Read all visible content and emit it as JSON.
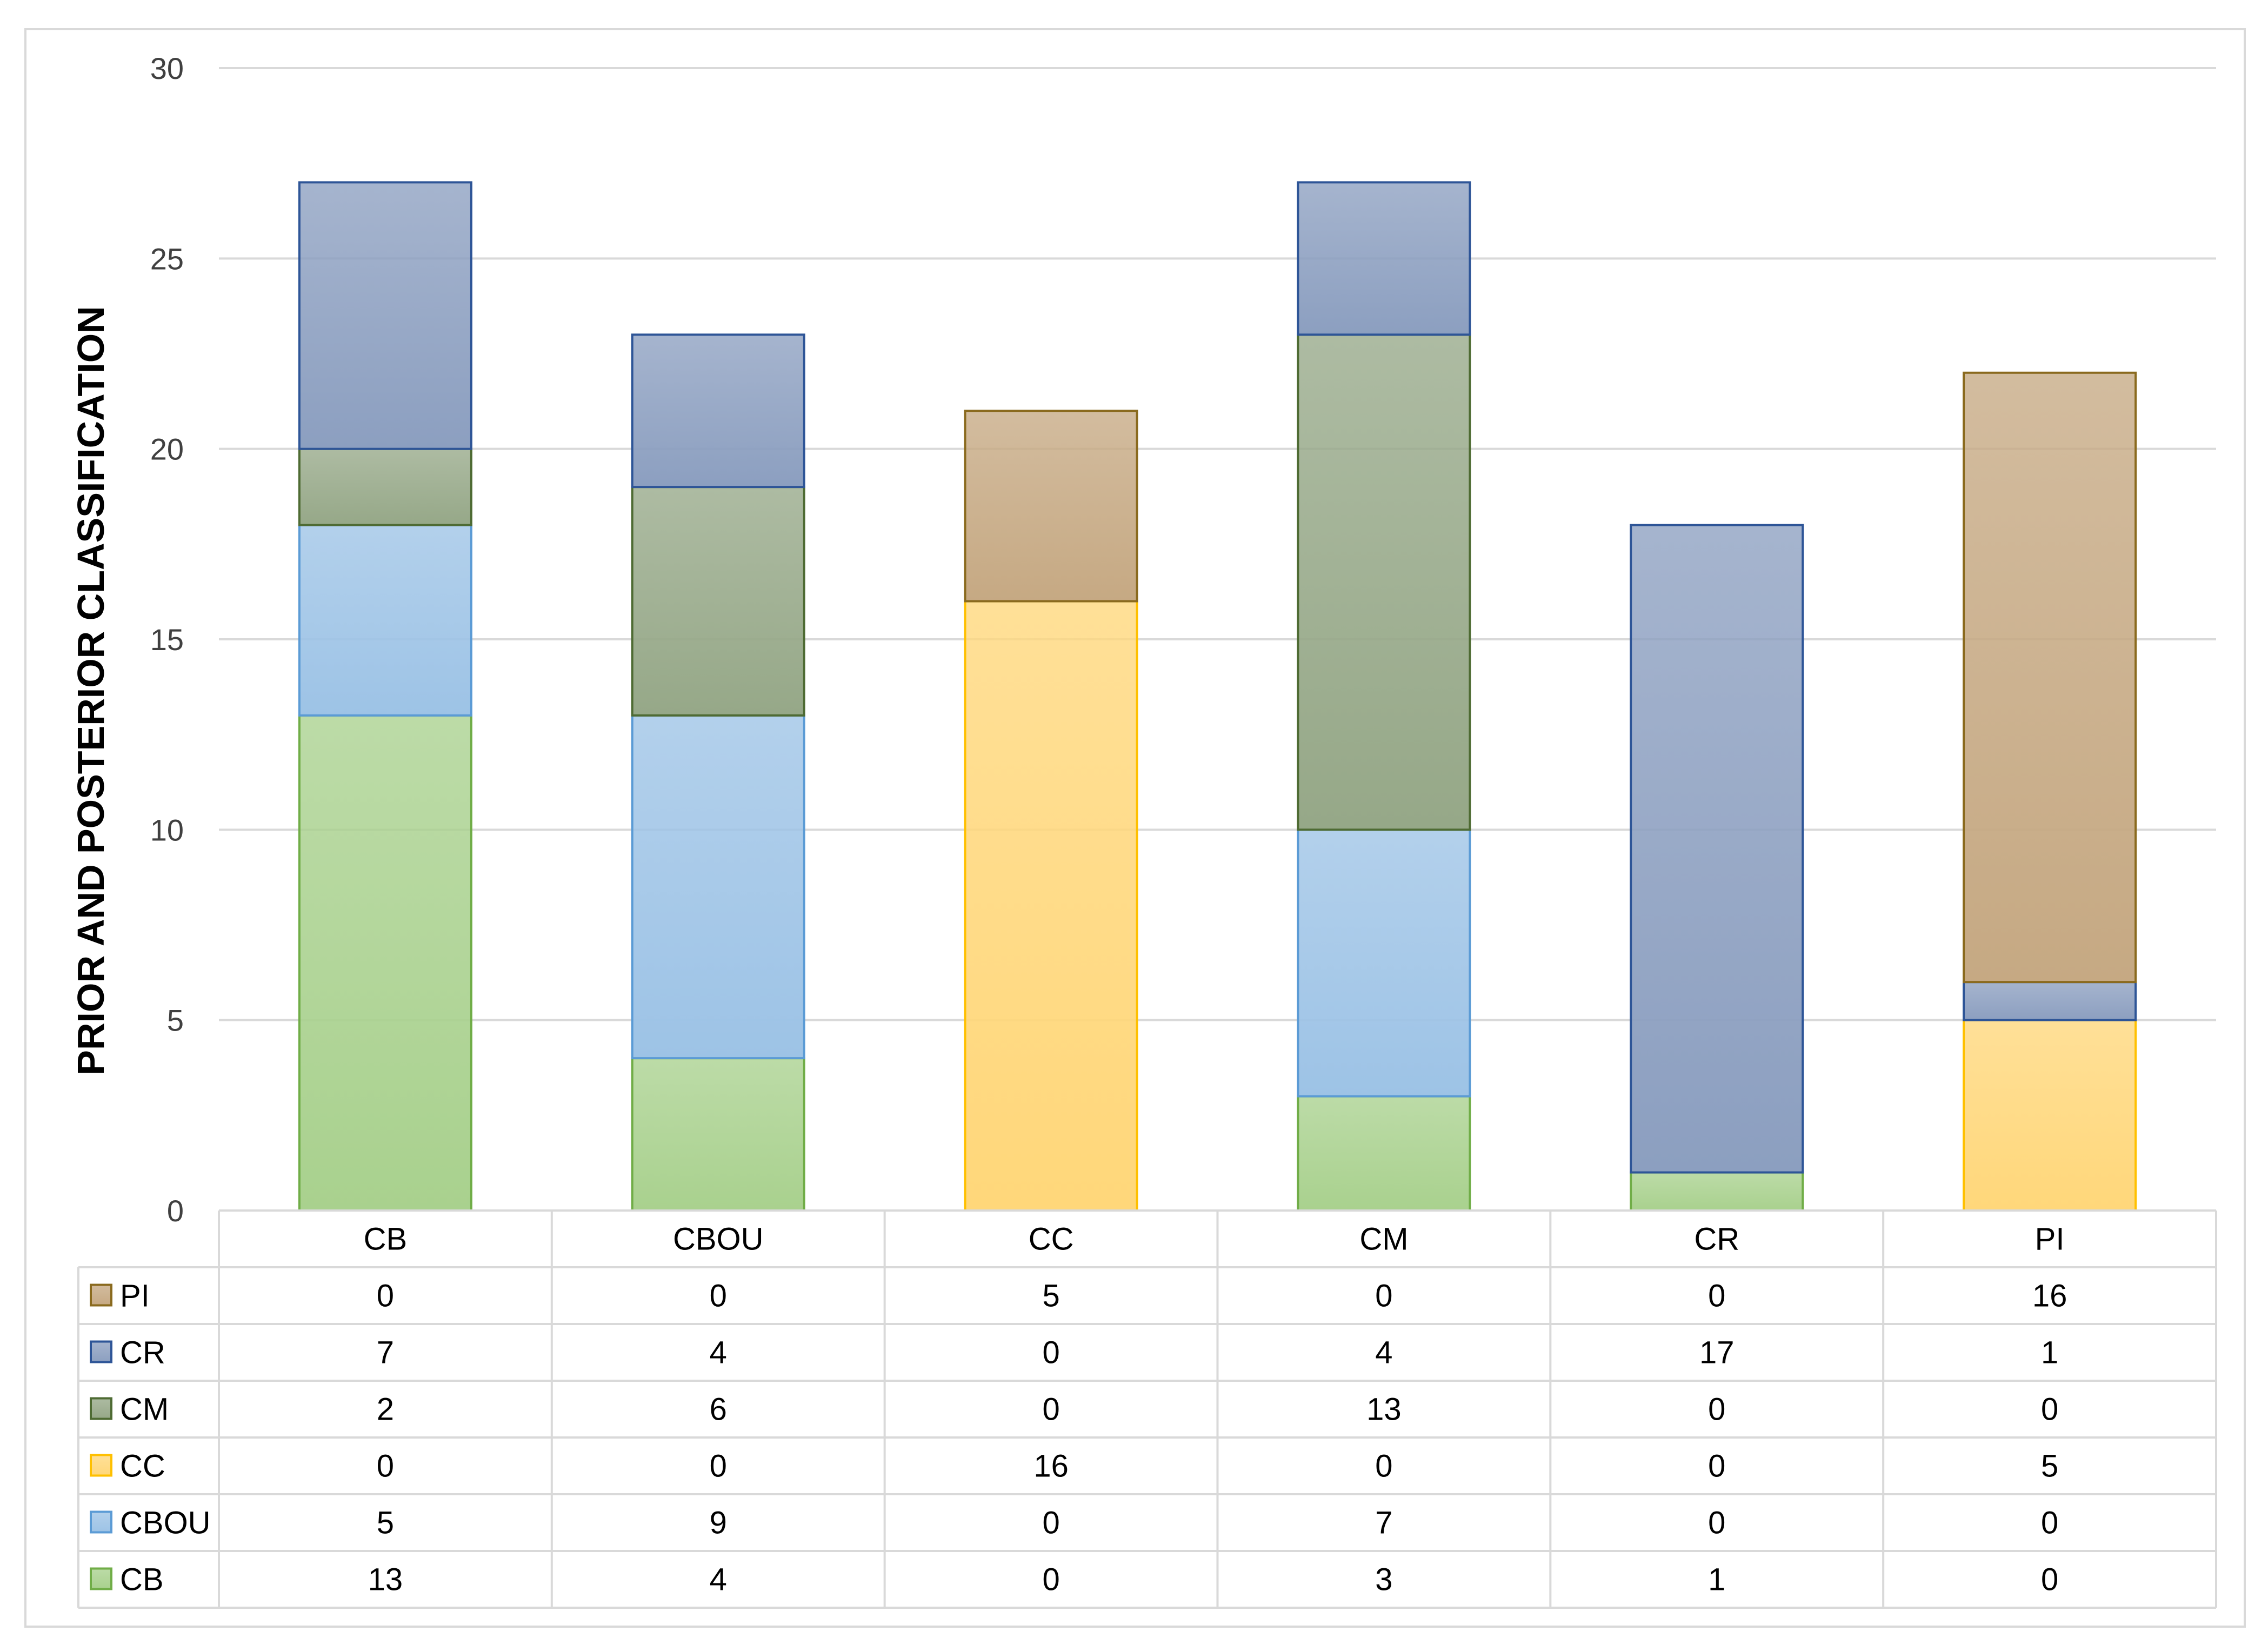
{
  "chart_data": {
    "type": "bar",
    "stacked": true,
    "title": "",
    "xlabel": "",
    "ylabel": "PRIOR AND POSTERIOR CLASSIFICATION",
    "ylim": [
      0,
      30
    ],
    "yticks": [
      0,
      5,
      10,
      15,
      20,
      25,
      30
    ],
    "grid": true,
    "legend": "data-table-left",
    "categories": [
      "CB",
      "CBOU",
      "CC",
      "CM",
      "CR",
      "PI"
    ],
    "series": [
      {
        "name": "CB",
        "values": [
          13,
          4,
          0,
          3,
          1,
          0
        ],
        "color": "#a9d18e",
        "stroke": "#70ad47"
      },
      {
        "name": "CBOU",
        "values": [
          5,
          9,
          0,
          7,
          0,
          0
        ],
        "color": "#9dc3e6",
        "stroke": "#5b9bd5"
      },
      {
        "name": "CC",
        "values": [
          0,
          0,
          16,
          0,
          0,
          5
        ],
        "color": "#ffd77a",
        "stroke": "#ffc000"
      },
      {
        "name": "CM",
        "values": [
          2,
          6,
          0,
          13,
          0,
          0
        ],
        "color": "#96a888",
        "stroke": "#4e6b33"
      },
      {
        "name": "CR",
        "values": [
          7,
          4,
          0,
          4,
          17,
          1
        ],
        "color": "#8c9fc0",
        "stroke": "#2e5597"
      },
      {
        "name": "PI",
        "values": [
          0,
          0,
          5,
          0,
          0,
          16
        ],
        "color": "#c6a983",
        "stroke": "#8a6a1e"
      }
    ],
    "table_row_order": [
      "PI",
      "CR",
      "CM",
      "CC",
      "CBOU",
      "CB"
    ]
  }
}
